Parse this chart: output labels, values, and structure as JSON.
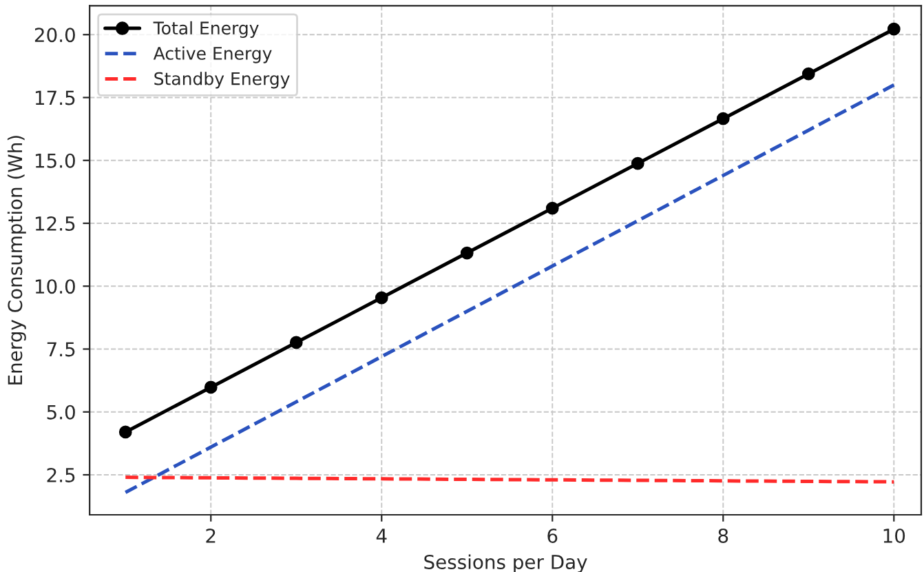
{
  "chart_data": {
    "type": "line",
    "xlabel": "Sessions per Day",
    "ylabel": "Energy Consumption (Wh)",
    "x": [
      1,
      2,
      3,
      4,
      5,
      6,
      7,
      8,
      9,
      10
    ],
    "series": [
      {
        "name": "Total Energy",
        "color": "#000000",
        "marker": "circle",
        "line_style": "solid",
        "values": [
          4.2,
          5.98,
          7.76,
          9.54,
          11.32,
          13.1,
          14.88,
          16.66,
          18.44,
          20.22
        ]
      },
      {
        "name": "Active Energy",
        "color": "#2a52be",
        "marker": "none",
        "line_style": "dashed",
        "values": [
          1.8,
          3.6,
          5.4,
          7.2,
          9.0,
          10.8,
          12.6,
          14.4,
          16.2,
          18.0
        ]
      },
      {
        "name": "Standby Energy",
        "color": "#ff2a2a",
        "marker": "none",
        "line_style": "dashed",
        "values": [
          2.4,
          2.38,
          2.36,
          2.34,
          2.32,
          2.3,
          2.28,
          2.26,
          2.24,
          2.22
        ]
      }
    ],
    "xlim": [
      0.58,
      10.32
    ],
    "ylim": [
      0.91,
      21.15
    ],
    "xticks": [
      2,
      4,
      6,
      8,
      10
    ],
    "yticks": [
      2.5,
      {
        "value": 5,
        "label": "5.0"
      },
      7.5,
      {
        "value": 10,
        "label": "10.0"
      },
      12.5,
      {
        "value": 15,
        "label": "15.0"
      },
      17.5,
      {
        "value": 20,
        "label": "20.0"
      }
    ],
    "grid": true,
    "legend": "top left"
  }
}
